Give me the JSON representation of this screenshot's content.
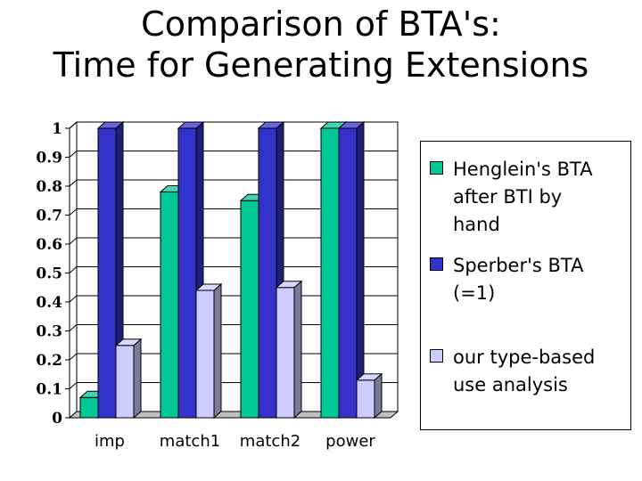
{
  "title_line1": "Comparison of BTA's:",
  "title_line2": "Time for Generating Extensions",
  "chart_data": {
    "type": "bar",
    "title": "Comparison of BTA's: Time for Generating Extensions",
    "categories": [
      "imp",
      "match1",
      "match2",
      "power"
    ],
    "series": [
      {
        "name": "Henglein's BTA after BTI by hand",
        "values": [
          0.07,
          0.78,
          0.75,
          1.0
        ],
        "color": "#00c896"
      },
      {
        "name": "Sperber's BTA (=1)",
        "values": [
          1.0,
          1.0,
          1.0,
          1.0
        ],
        "color": "#3333cc"
      },
      {
        "name": "our type-based use analysis",
        "values": [
          0.25,
          0.44,
          0.45,
          0.13
        ],
        "color": "#ccccff"
      }
    ],
    "yticks": [
      "0",
      "0.1",
      "0.2",
      "0.3",
      "0.4",
      "0.5",
      "0.6",
      "0.7",
      "0.8",
      "0.9",
      "1"
    ],
    "ylim": [
      0,
      1
    ],
    "xlabel": "",
    "ylabel": "",
    "legend_position": "right",
    "three_d": true
  },
  "legend": [
    {
      "label_lines": [
        "Henglein's BTA",
        "after BTI by",
        "hand"
      ],
      "color": "#00c896"
    },
    {
      "label_lines": [
        "Sperber's BTA",
        "(=1)"
      ],
      "color": "#3333cc"
    },
    {
      "label_lines": [
        "our type-based",
        "use analysis"
      ],
      "color": "#ccccff"
    }
  ]
}
